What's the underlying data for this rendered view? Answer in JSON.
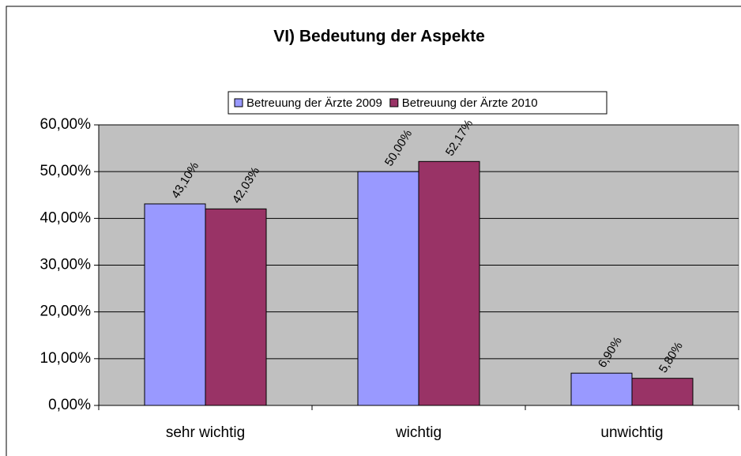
{
  "chart_data": {
    "type": "bar",
    "title": "VI) Bedeutung der Aspekte",
    "categories": [
      "sehr wichtig",
      "wichtig",
      "unwichtig"
    ],
    "series": [
      {
        "name": "Betreuung der Ärzte 2009",
        "color": "#9999ff",
        "values": [
          43.1,
          50.0,
          6.9
        ],
        "value_labels": [
          "43,10%",
          "50,00%",
          "6,90%"
        ]
      },
      {
        "name": "Betreuung der Ärzte 2010",
        "color": "#993366",
        "values": [
          42.03,
          52.17,
          5.8
        ],
        "value_labels": [
          "42,03%",
          "52,17%",
          "5,80%"
        ]
      }
    ],
    "ylim": [
      0,
      60
    ],
    "yticks": [
      {
        "value": 0,
        "label": "0,00%"
      },
      {
        "value": 10,
        "label": "10,00%"
      },
      {
        "value": 20,
        "label": "20,00%"
      },
      {
        "value": 30,
        "label": "30,00%"
      },
      {
        "value": 40,
        "label": "40,00%"
      },
      {
        "value": 50,
        "label": "50,00%"
      },
      {
        "value": 60,
        "label": "60,00%"
      }
    ],
    "grid": true,
    "legend": "top"
  }
}
